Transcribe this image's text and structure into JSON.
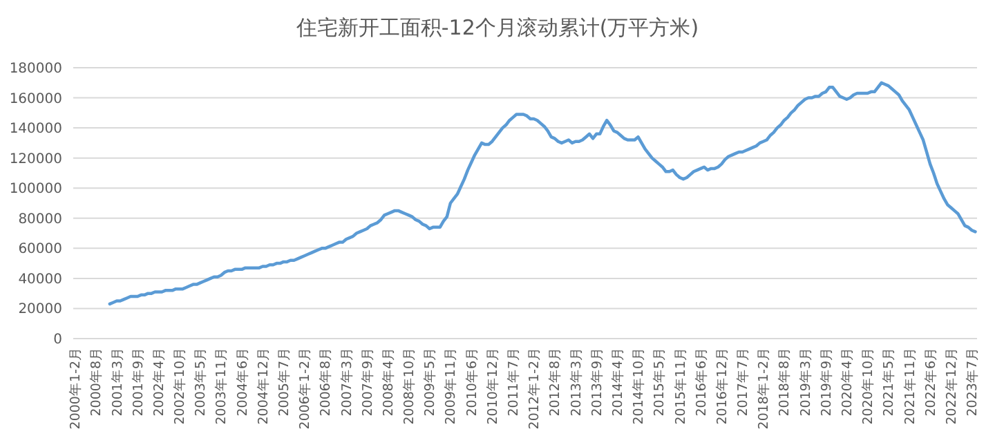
{
  "chart_data": {
    "type": "line",
    "title": "住宅新开工面积-12个月滚动累计(万平方米)",
    "categories": [
      "2000年1-2月",
      null,
      null,
      null,
      null,
      null,
      "2000年8月",
      null,
      null,
      null,
      null,
      null,
      "2001年3月",
      null,
      null,
      null,
      null,
      null,
      "2001年9月",
      null,
      null,
      null,
      null,
      null,
      "2002年4月",
      null,
      null,
      null,
      null,
      null,
      "2002年10月",
      null,
      null,
      null,
      null,
      null,
      "2003年5月",
      null,
      null,
      null,
      null,
      null,
      "2003年11月",
      null,
      null,
      null,
      null,
      null,
      "2004年6月",
      null,
      null,
      null,
      null,
      null,
      "2004年12月",
      null,
      null,
      null,
      null,
      null,
      "2005年7月",
      null,
      null,
      null,
      null,
      null,
      "2006年1-2月",
      null,
      null,
      null,
      null,
      null,
      "2006年8月",
      null,
      null,
      null,
      null,
      null,
      "2007年3月",
      null,
      null,
      null,
      null,
      null,
      "2007年9月",
      null,
      null,
      null,
      null,
      null,
      "2008年4月",
      null,
      null,
      null,
      null,
      null,
      "2008年10月",
      null,
      null,
      null,
      null,
      null,
      "2009年5月",
      null,
      null,
      null,
      null,
      null,
      "2009年11月",
      null,
      null,
      null,
      null,
      null,
      "2010年6月",
      null,
      null,
      null,
      null,
      null,
      "2010年12月",
      null,
      null,
      null,
      null,
      null,
      "2011年7月",
      null,
      null,
      null,
      null,
      null,
      "2012年1-2月",
      null,
      null,
      null,
      null,
      null,
      "2012年8月",
      null,
      null,
      null,
      null,
      null,
      "2013年3月",
      null,
      null,
      null,
      null,
      null,
      "2013年9月",
      null,
      null,
      null,
      null,
      null,
      "2014年4月",
      null,
      null,
      null,
      null,
      null,
      "2014年10月",
      null,
      null,
      null,
      null,
      null,
      "2015年5月",
      null,
      null,
      null,
      null,
      null,
      "2015年11月",
      null,
      null,
      null,
      null,
      null,
      "2016年6月",
      null,
      null,
      null,
      null,
      null,
      "2016年12月",
      null,
      null,
      null,
      null,
      null,
      "2017年7月",
      null,
      null,
      null,
      null,
      null,
      "2018年1-2月",
      null,
      null,
      null,
      null,
      null,
      "2018年8月",
      null,
      null,
      null,
      null,
      null,
      "2019年3月",
      null,
      null,
      null,
      null,
      null,
      "2019年9月",
      null,
      null,
      null,
      null,
      null,
      "2020年4月",
      null,
      null,
      null,
      null,
      null,
      "2020年10月",
      null,
      null,
      null,
      null,
      null,
      "2021年5月",
      null,
      null,
      null,
      null,
      null,
      "2021年11月",
      null,
      null,
      null,
      null,
      null,
      "2022年6月",
      null,
      null,
      null,
      null,
      null,
      "2022年12月",
      null,
      null,
      null,
      null,
      null,
      "2023年7月",
      null
    ],
    "ylim": [
      0,
      180000
    ],
    "yticks": [
      0,
      20000,
      40000,
      60000,
      80000,
      100000,
      120000,
      140000,
      160000,
      180000
    ],
    "grid": "y",
    "marker": "none",
    "line_style": "solid",
    "series": [
      {
        "color": "#5b9bd5",
        "values": [
          null,
          null,
          null,
          null,
          null,
          null,
          null,
          null,
          null,
          null,
          23000,
          24000,
          25000,
          25000,
          26000,
          27000,
          28000,
          28000,
          28000,
          29000,
          29000,
          30000,
          30000,
          31000,
          31000,
          31000,
          32000,
          32000,
          32000,
          33000,
          33000,
          33000,
          34000,
          35000,
          36000,
          36000,
          37000,
          38000,
          39000,
          40000,
          41000,
          41000,
          42000,
          44000,
          45000,
          45000,
          46000,
          46000,
          46000,
          47000,
          47000,
          47000,
          47000,
          47000,
          48000,
          48000,
          49000,
          49000,
          50000,
          50000,
          51000,
          51000,
          52000,
          52000,
          53000,
          54000,
          55000,
          56000,
          57000,
          58000,
          59000,
          60000,
          60000,
          61000,
          62000,
          63000,
          64000,
          64000,
          66000,
          67000,
          68000,
          70000,
          71000,
          72000,
          73000,
          75000,
          76000,
          77000,
          79000,
          82000,
          83000,
          84000,
          85000,
          85000,
          84000,
          83000,
          82000,
          81000,
          79000,
          78000,
          76000,
          75000,
          73000,
          74000,
          74000,
          74000,
          78000,
          81000,
          90000,
          93000,
          96000,
          101000,
          106000,
          112000,
          117000,
          122000,
          126000,
          130000,
          129000,
          129000,
          131000,
          134000,
          137000,
          140000,
          142000,
          145000,
          147000,
          149000,
          149000,
          149000,
          148000,
          146000,
          146000,
          145000,
          143000,
          141000,
          138000,
          134000,
          133000,
          131000,
          130000,
          131000,
          132000,
          130000,
          131000,
          131000,
          132000,
          134000,
          136000,
          133000,
          136000,
          136000,
          141000,
          145000,
          142000,
          138000,
          137000,
          135000,
          133000,
          132000,
          132000,
          132000,
          134000,
          130000,
          126000,
          123000,
          120000,
          118000,
          116000,
          114000,
          111000,
          111000,
          112000,
          109000,
          107000,
          106000,
          107000,
          109000,
          111000,
          112000,
          113000,
          114000,
          112000,
          113000,
          113000,
          114000,
          116000,
          119000,
          121000,
          122000,
          123000,
          124000,
          124000,
          125000,
          126000,
          127000,
          128000,
          130000,
          131000,
          132000,
          135000,
          137000,
          140000,
          142000,
          145000,
          147000,
          150000,
          152000,
          155000,
          157000,
          159000,
          160000,
          160000,
          161000,
          161000,
          163000,
          164000,
          167000,
          167000,
          164000,
          161000,
          160000,
          159000,
          160000,
          162000,
          163000,
          163000,
          163000,
          163000,
          164000,
          164000,
          167000,
          170000,
          169000,
          168000,
          166000,
          164000,
          162000,
          158000,
          155000,
          152000,
          147000,
          142000,
          137000,
          132000,
          124000,
          116000,
          110000,
          103000,
          98000,
          93000,
          89000,
          87000,
          85000,
          83000,
          79000,
          75000,
          74000,
          72000,
          71000
        ]
      }
    ]
  }
}
